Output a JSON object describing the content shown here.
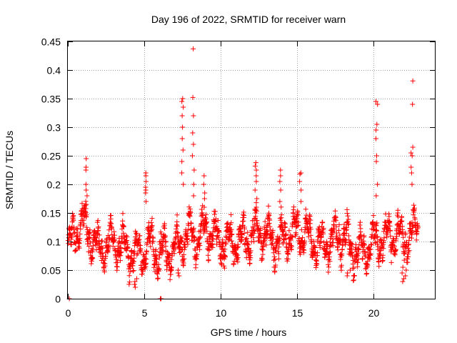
{
  "chart_data": {
    "type": "scatter",
    "title": "Day 196 of 2022, SRMTID for receiver warn",
    "xlabel": "GPS time / hours",
    "ylabel": "SRMTID / TECUs",
    "xlim": [
      0,
      24
    ],
    "ylim": [
      0,
      0.45
    ],
    "xticks": [
      0,
      5,
      10,
      15,
      20
    ],
    "xtick_labels": [
      "0",
      "5",
      "10",
      "15",
      "20"
    ],
    "yticks": [
      0,
      0.05,
      0.1,
      0.15,
      0.2,
      0.25,
      0.3,
      0.35,
      0.4,
      0.45
    ],
    "ytick_labels": [
      "0",
      "0.05",
      "0.1",
      "0.15",
      "0.2",
      "0.25",
      "0.3",
      "0.35",
      "0.4",
      "0.45"
    ],
    "grid": true,
    "marker": "+",
    "marker_color": "#ff0000",
    "series": [
      {
        "name": "SRMTID",
        "color": "#ff0000",
        "baseline": [
          [
            0.0,
            0.085
          ],
          [
            0.5,
            0.115
          ],
          [
            1.0,
            0.135
          ],
          [
            1.5,
            0.11
          ],
          [
            2.0,
            0.085
          ],
          [
            2.5,
            0.095
          ],
          [
            3.0,
            0.1
          ],
          [
            3.5,
            0.09
          ],
          [
            4.0,
            0.085
          ],
          [
            4.5,
            0.075
          ],
          [
            5.0,
            0.085
          ],
          [
            5.5,
            0.095
          ],
          [
            6.0,
            0.08
          ],
          [
            6.5,
            0.085
          ],
          [
            7.0,
            0.085
          ],
          [
            7.5,
            0.105
          ],
          [
            8.0,
            0.115
          ],
          [
            8.5,
            0.1
          ],
          [
            9.0,
            0.12
          ],
          [
            9.5,
            0.11
          ],
          [
            10.0,
            0.1
          ],
          [
            10.5,
            0.095
          ],
          [
            11.0,
            0.1
          ],
          [
            11.5,
            0.105
          ],
          [
            12.0,
            0.11
          ],
          [
            12.5,
            0.12
          ],
          [
            13.0,
            0.11
          ],
          [
            13.5,
            0.1
          ],
          [
            14.0,
            0.105
          ],
          [
            14.5,
            0.11
          ],
          [
            15.0,
            0.12
          ],
          [
            15.5,
            0.115
          ],
          [
            16.0,
            0.1
          ],
          [
            16.5,
            0.095
          ],
          [
            17.0,
            0.1
          ],
          [
            17.5,
            0.105
          ],
          [
            18.0,
            0.11
          ],
          [
            18.5,
            0.09
          ],
          [
            19.0,
            0.08
          ],
          [
            19.5,
            0.085
          ],
          [
            20.0,
            0.1
          ],
          [
            20.5,
            0.105
          ],
          [
            21.0,
            0.11
          ],
          [
            21.5,
            0.115
          ],
          [
            22.0,
            0.1
          ],
          [
            22.5,
            0.115
          ],
          [
            22.9,
            0.125
          ]
        ],
        "bursts": [
          {
            "x": 1.2,
            "values": [
              0.15,
              0.165,
              0.18,
              0.19,
              0.2,
              0.225,
              0.23,
              0.245
            ]
          },
          {
            "x": 5.1,
            "values": [
              0.17,
              0.185,
              0.19,
              0.195,
              0.205,
              0.215,
              0.22
            ]
          },
          {
            "x": 7.5,
            "values": [
              0.2,
              0.22,
              0.24,
              0.26,
              0.28,
              0.3,
              0.32,
              0.335,
              0.345,
              0.35
            ]
          },
          {
            "x": 8.2,
            "values": [
              0.18,
              0.2,
              0.225,
              0.25,
              0.27,
              0.29,
              0.32,
              0.352,
              0.437
            ]
          },
          {
            "x": 8.9,
            "values": [
              0.16,
              0.175,
              0.185,
              0.2,
              0.215
            ]
          },
          {
            "x": 12.3,
            "values": [
              0.16,
              0.175,
              0.19,
              0.205,
              0.215,
              0.225,
              0.232,
              0.238
            ]
          },
          {
            "x": 13.9,
            "values": [
              0.17,
              0.19,
              0.205,
              0.215,
              0.225
            ]
          },
          {
            "x": 15.2,
            "values": [
              0.17,
              0.19,
              0.205,
              0.218,
              0.22
            ]
          },
          {
            "x": 20.2,
            "values": [
              0.18,
              0.2,
              0.24,
              0.25,
              0.28,
              0.295,
              0.305,
              0.34,
              0.345
            ]
          },
          {
            "x": 22.5,
            "values": [
              0.2,
              0.22,
              0.23,
              0.25,
              0.255,
              0.265,
              0.34,
              0.381
            ]
          }
        ],
        "dips": [
          {
            "x": 4.5,
            "values": [
              0.02,
              0.025,
              0.03,
              0.035
            ]
          },
          {
            "x": 7.3,
            "values": [
              0.04,
              0.045,
              0.05
            ]
          },
          {
            "x": 18.4,
            "values": [
              0.04,
              0.045,
              0.05
            ]
          },
          {
            "x": 22.0,
            "values": [
              0.03,
              0.035,
              0.04,
              0.045,
              0.05,
              0.055
            ]
          }
        ],
        "zero_points": [
          [
            0.1,
            0.0
          ],
          [
            6.05,
            0.0
          ],
          [
            6.1,
            0.0
          ]
        ]
      }
    ]
  }
}
